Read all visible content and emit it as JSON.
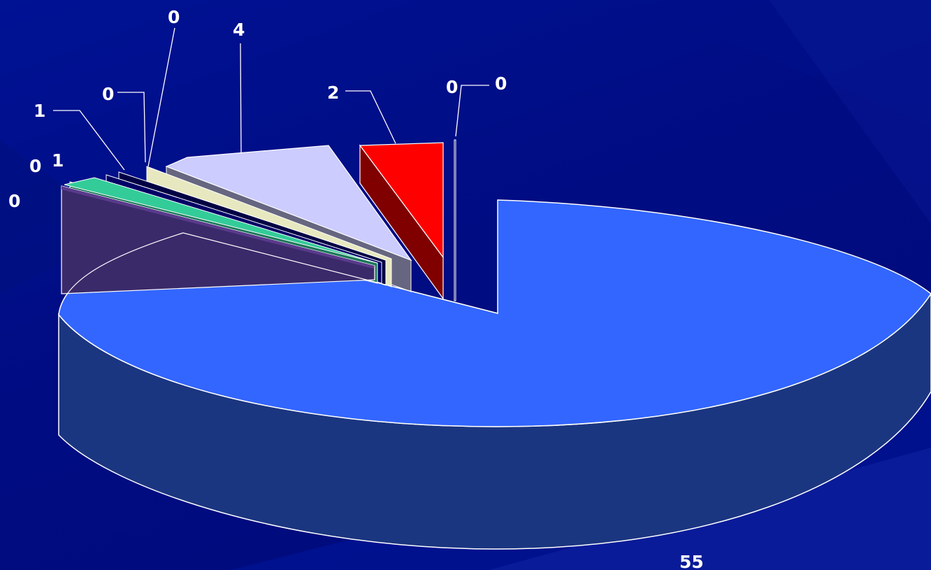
{
  "chart_data": {
    "type": "pie",
    "style": "3d-exploded",
    "legend": "none",
    "slices": [
      {
        "label": "55",
        "value": 55,
        "color": "#3366ff"
      },
      {
        "label": "0",
        "value": 0,
        "color": "#000066"
      },
      {
        "label": "0",
        "value": 0,
        "color": "#000066"
      },
      {
        "label": "2",
        "value": 2,
        "color": "#ff0000"
      },
      {
        "label": "4",
        "value": 4,
        "color": "#ccccff"
      },
      {
        "label": "0",
        "value": 0,
        "color": "#ffffcc"
      },
      {
        "label": "0",
        "value": 0,
        "color": "#000066"
      },
      {
        "label": "1",
        "value": 1,
        "color": "#000066"
      },
      {
        "label": "1",
        "value": 1,
        "color": "#33cc99"
      },
      {
        "label": "0",
        "value": 0,
        "color": "#33cc99"
      },
      {
        "label": "0",
        "value": 0,
        "color": "#5a3a8c"
      }
    ]
  },
  "colors": {
    "background": "#000a80",
    "pie_main_side": "#1b3680",
    "edge": "#ffffff"
  }
}
